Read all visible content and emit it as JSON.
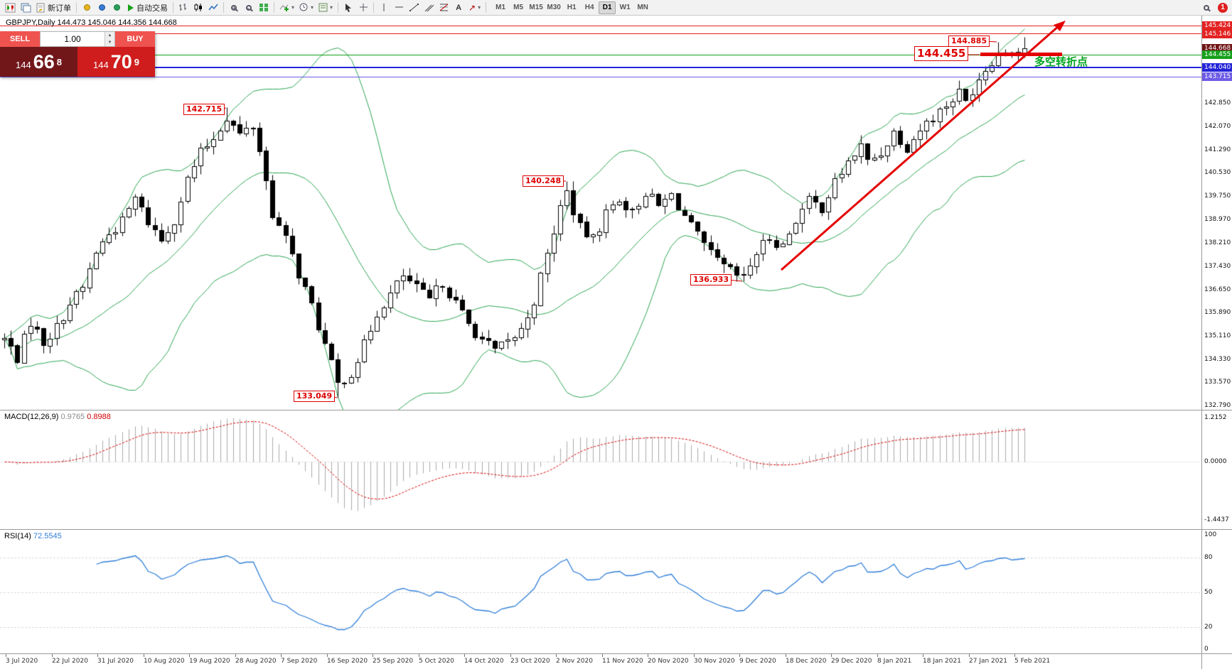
{
  "toolbar": {
    "new_order_label": "新订单",
    "auto_trading_label": "自动交易",
    "timeframes": [
      "M1",
      "M5",
      "M15",
      "M30",
      "H1",
      "H4",
      "D1",
      "W1",
      "MN"
    ],
    "active_timeframe": "D1",
    "notification_badge": "1"
  },
  "chart": {
    "header": "GBPJPY,Daily 144.473 145.046 144.356 144.668",
    "trade_panel": {
      "sell_label": "SELL",
      "buy_label": "BUY",
      "volume": "1.00",
      "sell_price": {
        "base": "144",
        "big": "66",
        "sup": "8"
      },
      "buy_price": {
        "base": "144",
        "big": "70",
        "sup": "9"
      }
    },
    "trend_note": "多空转折点",
    "annotations": [
      {
        "id": "aug-high",
        "text": "142.715"
      },
      {
        "id": "sep-low",
        "text": "133.049"
      },
      {
        "id": "nov-high",
        "text": "140.248"
      },
      {
        "id": "dec-low",
        "text": "136.933"
      },
      {
        "id": "feb-high",
        "text": "144.885"
      },
      {
        "id": "level",
        "text": "144.455"
      }
    ],
    "levels": [
      {
        "price": 145.424,
        "color": "#e32222",
        "width": 1
      },
      {
        "price": 145.146,
        "color": "#e32222",
        "width": 1
      },
      {
        "price": 144.455,
        "color": "#16a11b",
        "width": 1
      },
      {
        "price": 144.04,
        "color": "#2525d9",
        "width": 2
      },
      {
        "price": 143.715,
        "color": "#6e5ce6",
        "width": 1
      }
    ],
    "price_axis": {
      "highlighted": [
        {
          "text": "145.424",
          "bg": "#e32222"
        },
        {
          "text": "145.146",
          "bg": "#e32222"
        },
        {
          "text": "144.668",
          "bg": "#701414"
        },
        {
          "text": "144.455",
          "bg": "#16a11b"
        },
        {
          "text": "144.040",
          "bg": "#2525d9"
        },
        {
          "text": "143.715",
          "bg": "#6e5ce6"
        }
      ],
      "ticks": [
        "142.850",
        "142.070",
        "141.290",
        "140.530",
        "139.750",
        "138.970",
        "138.210",
        "137.430",
        "136.650",
        "135.890",
        "135.110",
        "134.330",
        "133.570",
        "132.790"
      ]
    },
    "dates": [
      "3 Jul 2020",
      "22 Jul 2020",
      "31 Jul 2020",
      "10 Aug 2020",
      "19 Aug 2020",
      "28 Aug 2020",
      "7 Sep 2020",
      "16 Sep 2020",
      "25 Sep 2020",
      "5 Oct 2020",
      "14 Oct 2020",
      "23 Oct 2020",
      "2 Nov 2020",
      "11 Nov 2020",
      "20 Nov 2020",
      "30 Nov 2020",
      "9 Dec 2020",
      "18 Dec 2020",
      "29 Dec 2020",
      "8 Jan 2021",
      "18 Jan 2021",
      "27 Jan 2021",
      "5 Feb 2021"
    ]
  },
  "macd": {
    "label": "MACD(12,26,9)",
    "main": "0.9765",
    "signal": "0.8988",
    "axis": [
      "1.2152",
      "0.0000",
      "-1.4437"
    ]
  },
  "rsi": {
    "label": "RSI(14)",
    "value": "72.5545",
    "axis": [
      "100",
      "80",
      "50",
      "20",
      "0"
    ],
    "levels": [
      80,
      50,
      20
    ]
  },
  "chart_data": {
    "type": "candlestick",
    "symbol": "GBPJPY",
    "timeframe": "Daily",
    "current_bar": {
      "open": 144.473,
      "high": 145.046,
      "low": 144.356,
      "close": 144.668
    },
    "price_range": [
      132.79,
      145.76
    ],
    "date_range": [
      "3 Jul 2020",
      "10 Feb 2021"
    ],
    "key_points": {
      "aug_high": 142.715,
      "sep_low": 133.049,
      "nov_high": 140.248,
      "dec_low": 136.933,
      "feb_high": 144.885,
      "pivot_level": 144.455
    },
    "price_waypoints": [
      [
        0,
        135.0
      ],
      [
        2,
        134.4
      ],
      [
        4,
        135.6
      ],
      [
        6,
        134.9
      ],
      [
        8,
        135.4
      ],
      [
        10,
        136.2
      ],
      [
        12,
        136.7
      ],
      [
        14,
        137.9
      ],
      [
        16,
        138.5
      ],
      [
        18,
        138.9
      ],
      [
        20,
        139.7
      ],
      [
        22,
        138.9
      ],
      [
        24,
        138.3
      ],
      [
        26,
        139.0
      ],
      [
        28,
        140.3
      ],
      [
        30,
        141.2
      ],
      [
        32,
        141.7
      ],
      [
        34,
        142.4
      ],
      [
        36,
        141.8
      ],
      [
        38,
        142.1
      ],
      [
        39,
        141.3
      ],
      [
        41,
        139.2
      ],
      [
        43,
        138.3
      ],
      [
        45,
        137.2
      ],
      [
        47,
        136.1
      ],
      [
        49,
        134.8
      ],
      [
        51,
        133.5
      ],
      [
        53,
        133.9
      ],
      [
        55,
        134.8
      ],
      [
        57,
        135.9
      ],
      [
        59,
        136.5
      ],
      [
        61,
        137.1
      ],
      [
        63,
        136.7
      ],
      [
        65,
        136.3
      ],
      [
        67,
        136.9
      ],
      [
        69,
        136.2
      ],
      [
        71,
        135.5
      ],
      [
        73,
        135.0
      ],
      [
        75,
        134.6
      ],
      [
        77,
        134.9
      ],
      [
        79,
        135.3
      ],
      [
        81,
        136.3
      ],
      [
        83,
        137.8
      ],
      [
        85,
        139.4
      ],
      [
        86,
        139.9
      ],
      [
        88,
        138.7
      ],
      [
        90,
        138.3
      ],
      [
        92,
        139.2
      ],
      [
        94,
        139.7
      ],
      [
        96,
        139.2
      ],
      [
        98,
        139.9
      ],
      [
        100,
        139.4
      ],
      [
        102,
        139.8
      ],
      [
        104,
        139.1
      ],
      [
        106,
        138.4
      ],
      [
        108,
        137.8
      ],
      [
        110,
        137.4
      ],
      [
        112,
        137.1
      ],
      [
        113,
        137.0
      ],
      [
        115,
        137.9
      ],
      [
        117,
        138.4
      ],
      [
        119,
        138.1
      ],
      [
        121,
        139.0
      ],
      [
        123,
        139.6
      ],
      [
        125,
        139.4
      ],
      [
        127,
        140.2
      ],
      [
        129,
        140.9
      ],
      [
        131,
        141.4
      ],
      [
        132,
        140.9
      ],
      [
        134,
        141.2
      ],
      [
        136,
        141.9
      ],
      [
        138,
        141.4
      ],
      [
        140,
        142.0
      ],
      [
        142,
        142.4
      ],
      [
        144,
        142.8
      ],
      [
        146,
        143.2
      ],
      [
        147,
        142.9
      ],
      [
        149,
        143.7
      ],
      [
        151,
        144.3
      ],
      [
        153,
        144.6
      ],
      [
        155,
        144.6
      ],
      [
        156,
        144.67
      ]
    ],
    "indicators": [
      "Bollinger Bands(20,2)",
      "MACD(12,26,9)",
      "RSI(14)"
    ]
  }
}
